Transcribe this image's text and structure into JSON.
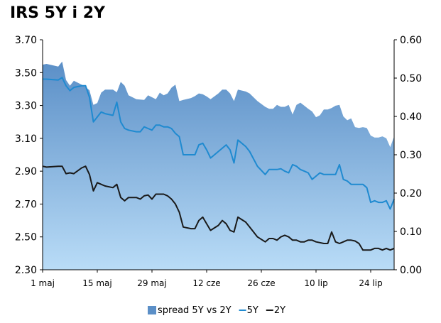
{
  "chart_data": {
    "type": "line",
    "title": "IRS 5Y i 2Y",
    "left_axis": {
      "min": 2.3,
      "max": 3.7,
      "ticks": [
        "2.30",
        "2.50",
        "2.70",
        "2.90",
        "3.10",
        "3.30",
        "3.50",
        "3.70"
      ],
      "tick_values": [
        2.3,
        2.5,
        2.7,
        2.9,
        3.1,
        3.3,
        3.5,
        3.7
      ]
    },
    "right_axis": {
      "min": 0.0,
      "max": 0.6,
      "ticks": [
        "0.00",
        "0.10",
        "0.20",
        "0.30",
        "0.40",
        "0.50",
        "0.60"
      ],
      "tick_values": [
        0.0,
        0.1,
        0.2,
        0.3,
        0.4,
        0.5,
        0.6
      ]
    },
    "x_ticks": [
      {
        "label": "1 maj",
        "day": 0
      },
      {
        "label": "15 maj",
        "day": 14
      },
      {
        "label": "29 maj",
        "day": 28
      },
      {
        "label": "12 cze",
        "day": 42
      },
      {
        "label": "26 cze",
        "day": 56
      },
      {
        "label": "10 lip",
        "day": 70
      },
      {
        "label": "24 lip",
        "day": 84
      }
    ],
    "x_range": [
      0,
      90
    ],
    "legend_position": "bottom",
    "series": [
      {
        "name": "spread 5Y vs 2Y",
        "kind": "area",
        "axis": "right",
        "color": "#5b8fc7",
        "x": [
          0,
          1,
          4,
          5,
          6,
          7,
          8,
          10,
          11,
          12,
          13,
          14,
          15,
          16,
          18,
          19,
          20,
          21,
          22,
          24,
          25,
          26,
          27,
          28,
          29,
          30,
          31,
          32,
          33,
          34,
          35,
          36,
          38,
          39,
          40,
          41,
          42,
          43,
          45,
          46,
          47,
          48,
          49,
          50,
          52,
          53,
          55,
          57,
          58,
          59,
          60,
          61,
          62,
          63,
          64,
          65,
          66,
          67,
          68,
          69,
          70,
          71,
          72,
          73,
          74,
          75,
          76,
          77,
          78,
          79,
          80,
          81,
          82,
          83,
          84,
          85,
          86,
          87,
          88,
          89,
          90
        ],
        "values": [
          0.535,
          0.537,
          0.53,
          0.543,
          0.495,
          0.48,
          0.493,
          0.483,
          0.477,
          0.468,
          0.43,
          0.435,
          0.462,
          0.47,
          0.47,
          0.463,
          0.49,
          0.48,
          0.455,
          0.445,
          0.444,
          0.443,
          0.455,
          0.45,
          0.445,
          0.462,
          0.455,
          0.46,
          0.475,
          0.483,
          0.44,
          0.443,
          0.448,
          0.453,
          0.46,
          0.458,
          0.452,
          0.445,
          0.46,
          0.47,
          0.47,
          0.46,
          0.44,
          0.47,
          0.465,
          0.46,
          0.44,
          0.425,
          0.42,
          0.42,
          0.43,
          0.425,
          0.425,
          0.43,
          0.405,
          0.43,
          0.436,
          0.428,
          0.42,
          0.413,
          0.398,
          0.403,
          0.418,
          0.418,
          0.422,
          0.428,
          0.43,
          0.4,
          0.39,
          0.395,
          0.372,
          0.37,
          0.372,
          0.37,
          0.35,
          0.345,
          0.345,
          0.348,
          0.343,
          0.32,
          0.348
        ]
      },
      {
        "name": "5Y",
        "kind": "line",
        "axis": "left",
        "color": "#1f8ad0",
        "x": [
          0,
          1,
          4,
          5,
          6,
          7,
          8,
          10,
          11,
          12,
          13,
          14,
          15,
          16,
          18,
          19,
          20,
          21,
          22,
          24,
          25,
          26,
          27,
          28,
          29,
          30,
          31,
          32,
          33,
          34,
          35,
          36,
          38,
          39,
          40,
          41,
          42,
          43,
          45,
          46,
          47,
          48,
          49,
          50,
          52,
          53,
          55,
          57,
          58,
          59,
          60,
          61,
          62,
          63,
          64,
          65,
          66,
          67,
          68,
          69,
          70,
          71,
          72,
          73,
          74,
          75,
          76,
          77,
          78,
          79,
          80,
          81,
          82,
          83,
          84,
          85,
          86,
          87,
          88,
          89,
          90
        ],
        "values": [
          3.46,
          3.46,
          3.455,
          3.47,
          3.42,
          3.39,
          3.41,
          3.42,
          3.42,
          3.35,
          3.2,
          3.23,
          3.26,
          3.25,
          3.24,
          3.32,
          3.2,
          3.16,
          3.15,
          3.14,
          3.14,
          3.17,
          3.16,
          3.15,
          3.18,
          3.18,
          3.17,
          3.17,
          3.16,
          3.13,
          3.11,
          3.0,
          3.0,
          3.0,
          3.06,
          3.07,
          3.03,
          2.98,
          3.02,
          3.04,
          3.06,
          3.03,
          2.95,
          3.09,
          3.05,
          3.02,
          2.93,
          2.88,
          2.91,
          2.91,
          2.91,
          2.915,
          2.9,
          2.89,
          2.94,
          2.93,
          2.91,
          2.9,
          2.89,
          2.85,
          2.87,
          2.89,
          2.88,
          2.88,
          2.88,
          2.88,
          2.94,
          2.85,
          2.84,
          2.82,
          2.82,
          2.82,
          2.82,
          2.8,
          2.71,
          2.72,
          2.71,
          2.71,
          2.72,
          2.67,
          2.73
        ]
      },
      {
        "name": "2Y",
        "kind": "line",
        "axis": "left",
        "color": "#1a1a1a",
        "x": [
          0,
          1,
          4,
          5,
          6,
          7,
          8,
          10,
          11,
          12,
          13,
          14,
          15,
          16,
          18,
          19,
          20,
          21,
          22,
          24,
          25,
          26,
          27,
          28,
          29,
          30,
          31,
          32,
          33,
          34,
          35,
          36,
          38,
          39,
          40,
          41,
          42,
          43,
          45,
          46,
          47,
          48,
          49,
          50,
          52,
          53,
          55,
          57,
          58,
          59,
          60,
          61,
          62,
          63,
          64,
          65,
          66,
          67,
          68,
          69,
          70,
          71,
          72,
          73,
          74,
          75,
          76,
          77,
          78,
          79,
          80,
          81,
          82,
          83,
          84,
          85,
          86,
          87,
          88,
          89,
          90
        ],
        "values": [
          2.93,
          2.925,
          2.93,
          2.93,
          2.885,
          2.89,
          2.885,
          2.92,
          2.93,
          2.88,
          2.78,
          2.83,
          2.82,
          2.81,
          2.8,
          2.82,
          2.74,
          2.72,
          2.74,
          2.74,
          2.73,
          2.75,
          2.755,
          2.73,
          2.76,
          2.76,
          2.76,
          2.75,
          2.73,
          2.7,
          2.65,
          2.56,
          2.55,
          2.55,
          2.6,
          2.62,
          2.58,
          2.54,
          2.57,
          2.6,
          2.58,
          2.54,
          2.53,
          2.62,
          2.59,
          2.56,
          2.5,
          2.47,
          2.49,
          2.49,
          2.48,
          2.5,
          2.51,
          2.5,
          2.48,
          2.48,
          2.47,
          2.47,
          2.48,
          2.48,
          2.47,
          2.465,
          2.46,
          2.46,
          2.53,
          2.47,
          2.46,
          2.47,
          2.48,
          2.48,
          2.475,
          2.46,
          2.42,
          2.42,
          2.42,
          2.43,
          2.43,
          2.42,
          2.43,
          2.42,
          2.43
        ]
      }
    ]
  }
}
